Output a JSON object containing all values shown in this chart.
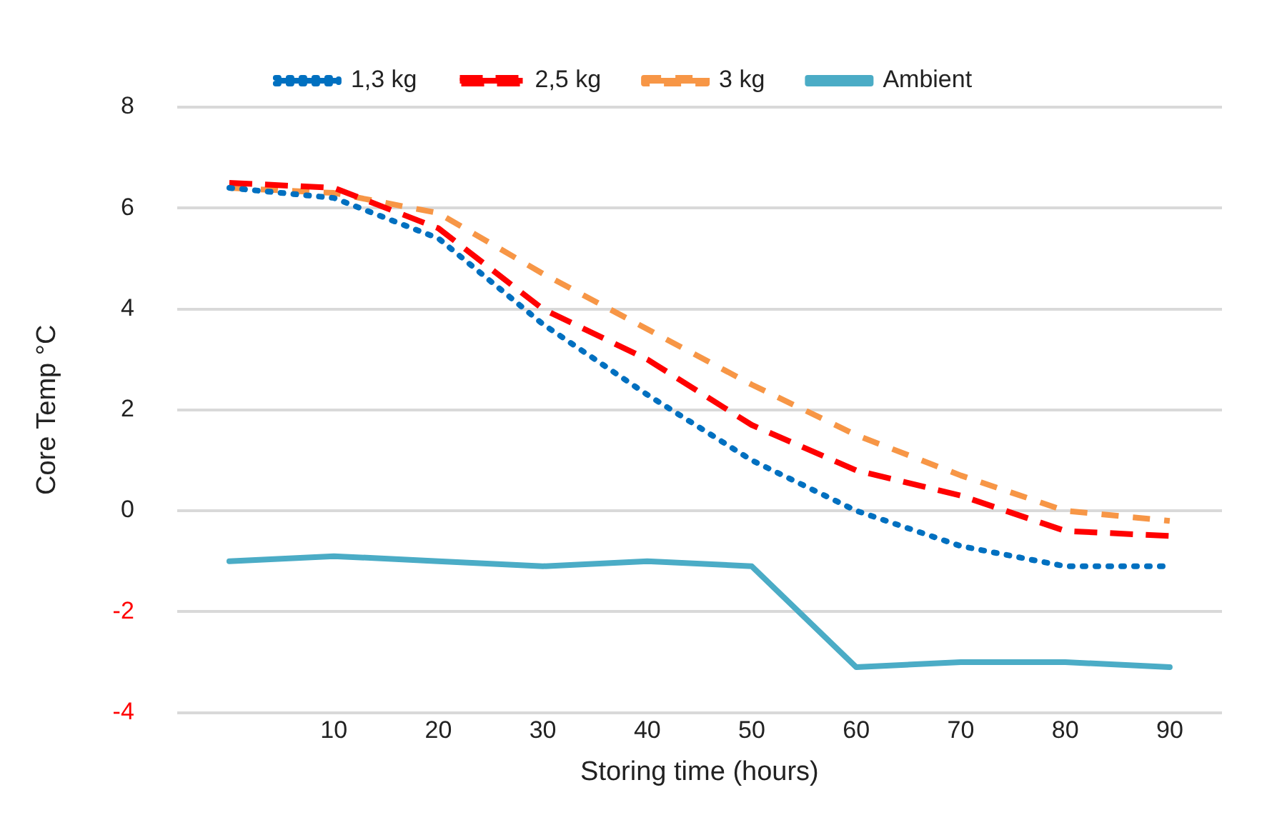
{
  "chart_data": {
    "type": "line",
    "xlabel": "Storing time (hours)",
    "ylabel": "Core Temp °C",
    "x": [
      0,
      10,
      20,
      30,
      40,
      50,
      60,
      70,
      80,
      90
    ],
    "series": [
      {
        "name": "1,3 kg",
        "color": "#0070c0",
        "line_style": "dotted",
        "values": [
          6.4,
          6.2,
          5.4,
          3.7,
          2.3,
          1.0,
          0.0,
          -0.7,
          -1.1,
          -1.1
        ]
      },
      {
        "name": "2,5 kg",
        "color": "#ff0000",
        "line_style": "dashed",
        "values": [
          6.5,
          6.4,
          5.6,
          4.0,
          3.0,
          1.7,
          0.8,
          0.3,
          -0.4,
          -0.5
        ]
      },
      {
        "name": "3 kg",
        "color": "#f79646",
        "line_style": "dashed",
        "values": [
          6.4,
          6.3,
          5.9,
          4.7,
          3.6,
          2.5,
          1.5,
          0.7,
          0.0,
          -0.2
        ]
      },
      {
        "name": "Ambient",
        "color": "#4bacc6",
        "line_style": "solid",
        "values": [
          -1.0,
          -0.9,
          -1.0,
          -1.1,
          -1.0,
          -1.1,
          -3.1,
          -3.0,
          -3.0,
          -3.1
        ]
      }
    ],
    "xlim": [
      -5,
      95
    ],
    "xticks": [
      10,
      20,
      30,
      40,
      50,
      60,
      70,
      80,
      90
    ],
    "ylim": [
      -4,
      8
    ],
    "yticks": [
      -4,
      -2,
      0,
      2,
      4,
      6,
      8
    ],
    "grid": "y",
    "legend": "top",
    "marker": "none"
  }
}
